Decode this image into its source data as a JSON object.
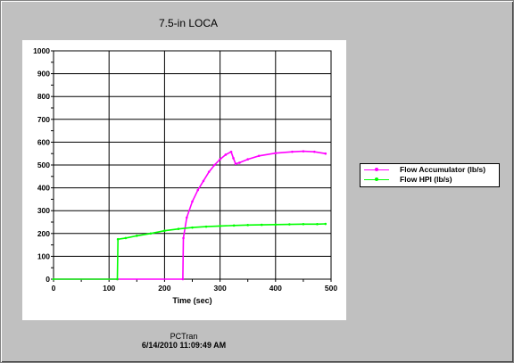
{
  "window": {
    "footer_app": "PCTran",
    "footer_timestamp": "6/14/2010 11:09:49 AM"
  },
  "chart_data": {
    "type": "line",
    "title": "7.5-in LOCA",
    "xlabel": "Time (sec)",
    "ylabel": "",
    "xlim": [
      0,
      500
    ],
    "ylim": [
      0,
      1000
    ],
    "x_ticks": [
      "0",
      "100",
      "200",
      "300",
      "400",
      "500"
    ],
    "y_ticks": [
      "0",
      "100",
      "200",
      "300",
      "400",
      "500",
      "600",
      "700",
      "800",
      "900",
      "1000"
    ],
    "grid": true,
    "legend_position": "right",
    "series": [
      {
        "name": "Flow Accumulator (lb/s)",
        "color": "#ff00ff",
        "points": [
          [
            0,
            0
          ],
          [
            115,
            0
          ],
          [
            233,
            0
          ],
          [
            234,
            180
          ],
          [
            240,
            270
          ],
          [
            250,
            340
          ],
          [
            260,
            390
          ],
          [
            270,
            430
          ],
          [
            280,
            470
          ],
          [
            290,
            500
          ],
          [
            300,
            525
          ],
          [
            310,
            545
          ],
          [
            320,
            558
          ],
          [
            324,
            530
          ],
          [
            328,
            505
          ],
          [
            335,
            510
          ],
          [
            350,
            525
          ],
          [
            370,
            540
          ],
          [
            400,
            552
          ],
          [
            430,
            558
          ],
          [
            450,
            560
          ],
          [
            470,
            558
          ],
          [
            490,
            550
          ]
        ]
      },
      {
        "name": "Flow HPI (lb/s)",
        "color": "#00ff00",
        "points": [
          [
            0,
            0
          ],
          [
            115,
            0
          ],
          [
            116,
            175
          ],
          [
            130,
            180
          ],
          [
            150,
            190
          ],
          [
            175,
            200
          ],
          [
            200,
            212
          ],
          [
            225,
            220
          ],
          [
            250,
            226
          ],
          [
            275,
            230
          ],
          [
            300,
            233
          ],
          [
            325,
            235
          ],
          [
            350,
            237
          ],
          [
            375,
            238
          ],
          [
            400,
            239
          ],
          [
            425,
            240
          ],
          [
            450,
            241
          ],
          [
            475,
            241
          ],
          [
            490,
            242
          ]
        ]
      }
    ]
  }
}
